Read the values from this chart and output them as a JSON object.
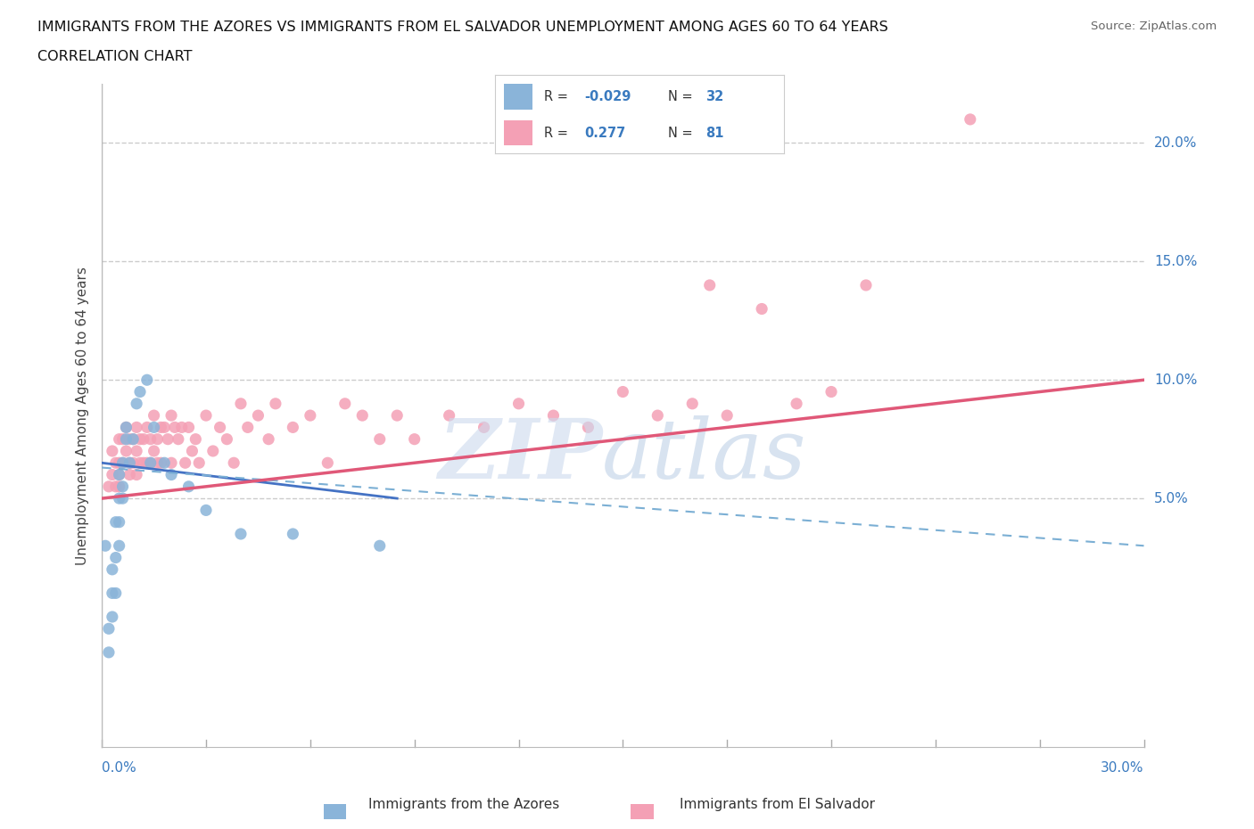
{
  "title_line1": "IMMIGRANTS FROM THE AZORES VS IMMIGRANTS FROM EL SALVADOR UNEMPLOYMENT AMONG AGES 60 TO 64 YEARS",
  "title_line2": "CORRELATION CHART",
  "source": "Source: ZipAtlas.com",
  "ylabel": "Unemployment Among Ages 60 to 64 years",
  "ytick_labels": [
    "5.0%",
    "10.0%",
    "15.0%",
    "20.0%"
  ],
  "ytick_values": [
    0.05,
    0.1,
    0.15,
    0.2
  ],
  "xmin": 0.0,
  "xmax": 0.3,
  "ymin": -0.055,
  "ymax": 0.225,
  "color_azores": "#8ab4d9",
  "color_salvador": "#f4a0b5",
  "color_azores_line_solid": "#4472c4",
  "color_salvador_line": "#e05878",
  "color_azores_line_dash": "#7bafd4",
  "background": "#ffffff",
  "azores_x": [
    0.001,
    0.002,
    0.002,
    0.003,
    0.003,
    0.003,
    0.004,
    0.004,
    0.004,
    0.005,
    0.005,
    0.005,
    0.005,
    0.006,
    0.006,
    0.006,
    0.007,
    0.007,
    0.008,
    0.009,
    0.01,
    0.011,
    0.013,
    0.014,
    0.015,
    0.018,
    0.02,
    0.025,
    0.03,
    0.04,
    0.055,
    0.08
  ],
  "azores_y": [
    0.03,
    -0.005,
    -0.015,
    0.02,
    0.01,
    0.0,
    0.04,
    0.025,
    0.01,
    0.06,
    0.05,
    0.04,
    0.03,
    0.065,
    0.055,
    0.05,
    0.08,
    0.075,
    0.065,
    0.075,
    0.09,
    0.095,
    0.1,
    0.065,
    0.08,
    0.065,
    0.06,
    0.055,
    0.045,
    0.035,
    0.035,
    0.03
  ],
  "salvador_x": [
    0.002,
    0.003,
    0.003,
    0.004,
    0.004,
    0.005,
    0.005,
    0.005,
    0.005,
    0.006,
    0.006,
    0.007,
    0.007,
    0.008,
    0.008,
    0.008,
    0.009,
    0.009,
    0.01,
    0.01,
    0.01,
    0.011,
    0.011,
    0.012,
    0.012,
    0.013,
    0.013,
    0.014,
    0.014,
    0.015,
    0.015,
    0.016,
    0.016,
    0.017,
    0.017,
    0.018,
    0.019,
    0.02,
    0.02,
    0.021,
    0.022,
    0.023,
    0.024,
    0.025,
    0.026,
    0.027,
    0.028,
    0.03,
    0.032,
    0.034,
    0.036,
    0.038,
    0.04,
    0.042,
    0.045,
    0.048,
    0.05,
    0.055,
    0.06,
    0.065,
    0.07,
    0.075,
    0.08,
    0.085,
    0.09,
    0.1,
    0.11,
    0.12,
    0.13,
    0.14,
    0.15,
    0.16,
    0.17,
    0.175,
    0.18,
    0.19,
    0.2,
    0.21,
    0.22,
    0.25
  ],
  "salvador_y": [
    0.055,
    0.07,
    0.06,
    0.065,
    0.055,
    0.075,
    0.065,
    0.06,
    0.055,
    0.075,
    0.065,
    0.08,
    0.07,
    0.075,
    0.065,
    0.06,
    0.075,
    0.065,
    0.08,
    0.07,
    0.06,
    0.075,
    0.065,
    0.075,
    0.065,
    0.08,
    0.065,
    0.075,
    0.065,
    0.085,
    0.07,
    0.075,
    0.065,
    0.08,
    0.065,
    0.08,
    0.075,
    0.085,
    0.065,
    0.08,
    0.075,
    0.08,
    0.065,
    0.08,
    0.07,
    0.075,
    0.065,
    0.085,
    0.07,
    0.08,
    0.075,
    0.065,
    0.09,
    0.08,
    0.085,
    0.075,
    0.09,
    0.08,
    0.085,
    0.065,
    0.09,
    0.085,
    0.075,
    0.085,
    0.075,
    0.085,
    0.08,
    0.09,
    0.085,
    0.08,
    0.095,
    0.085,
    0.09,
    0.14,
    0.085,
    0.13,
    0.09,
    0.095,
    0.14,
    0.21
  ],
  "azores_solid_trend_x": [
    0.0,
    0.085
  ],
  "azores_solid_trend_y": [
    0.065,
    0.05
  ],
  "azores_dash_trend_x": [
    0.0,
    0.3
  ],
  "azores_dash_trend_y": [
    0.063,
    0.03
  ],
  "salvador_trend_x": [
    0.0,
    0.3
  ],
  "salvador_trend_y": [
    0.05,
    0.1
  ]
}
